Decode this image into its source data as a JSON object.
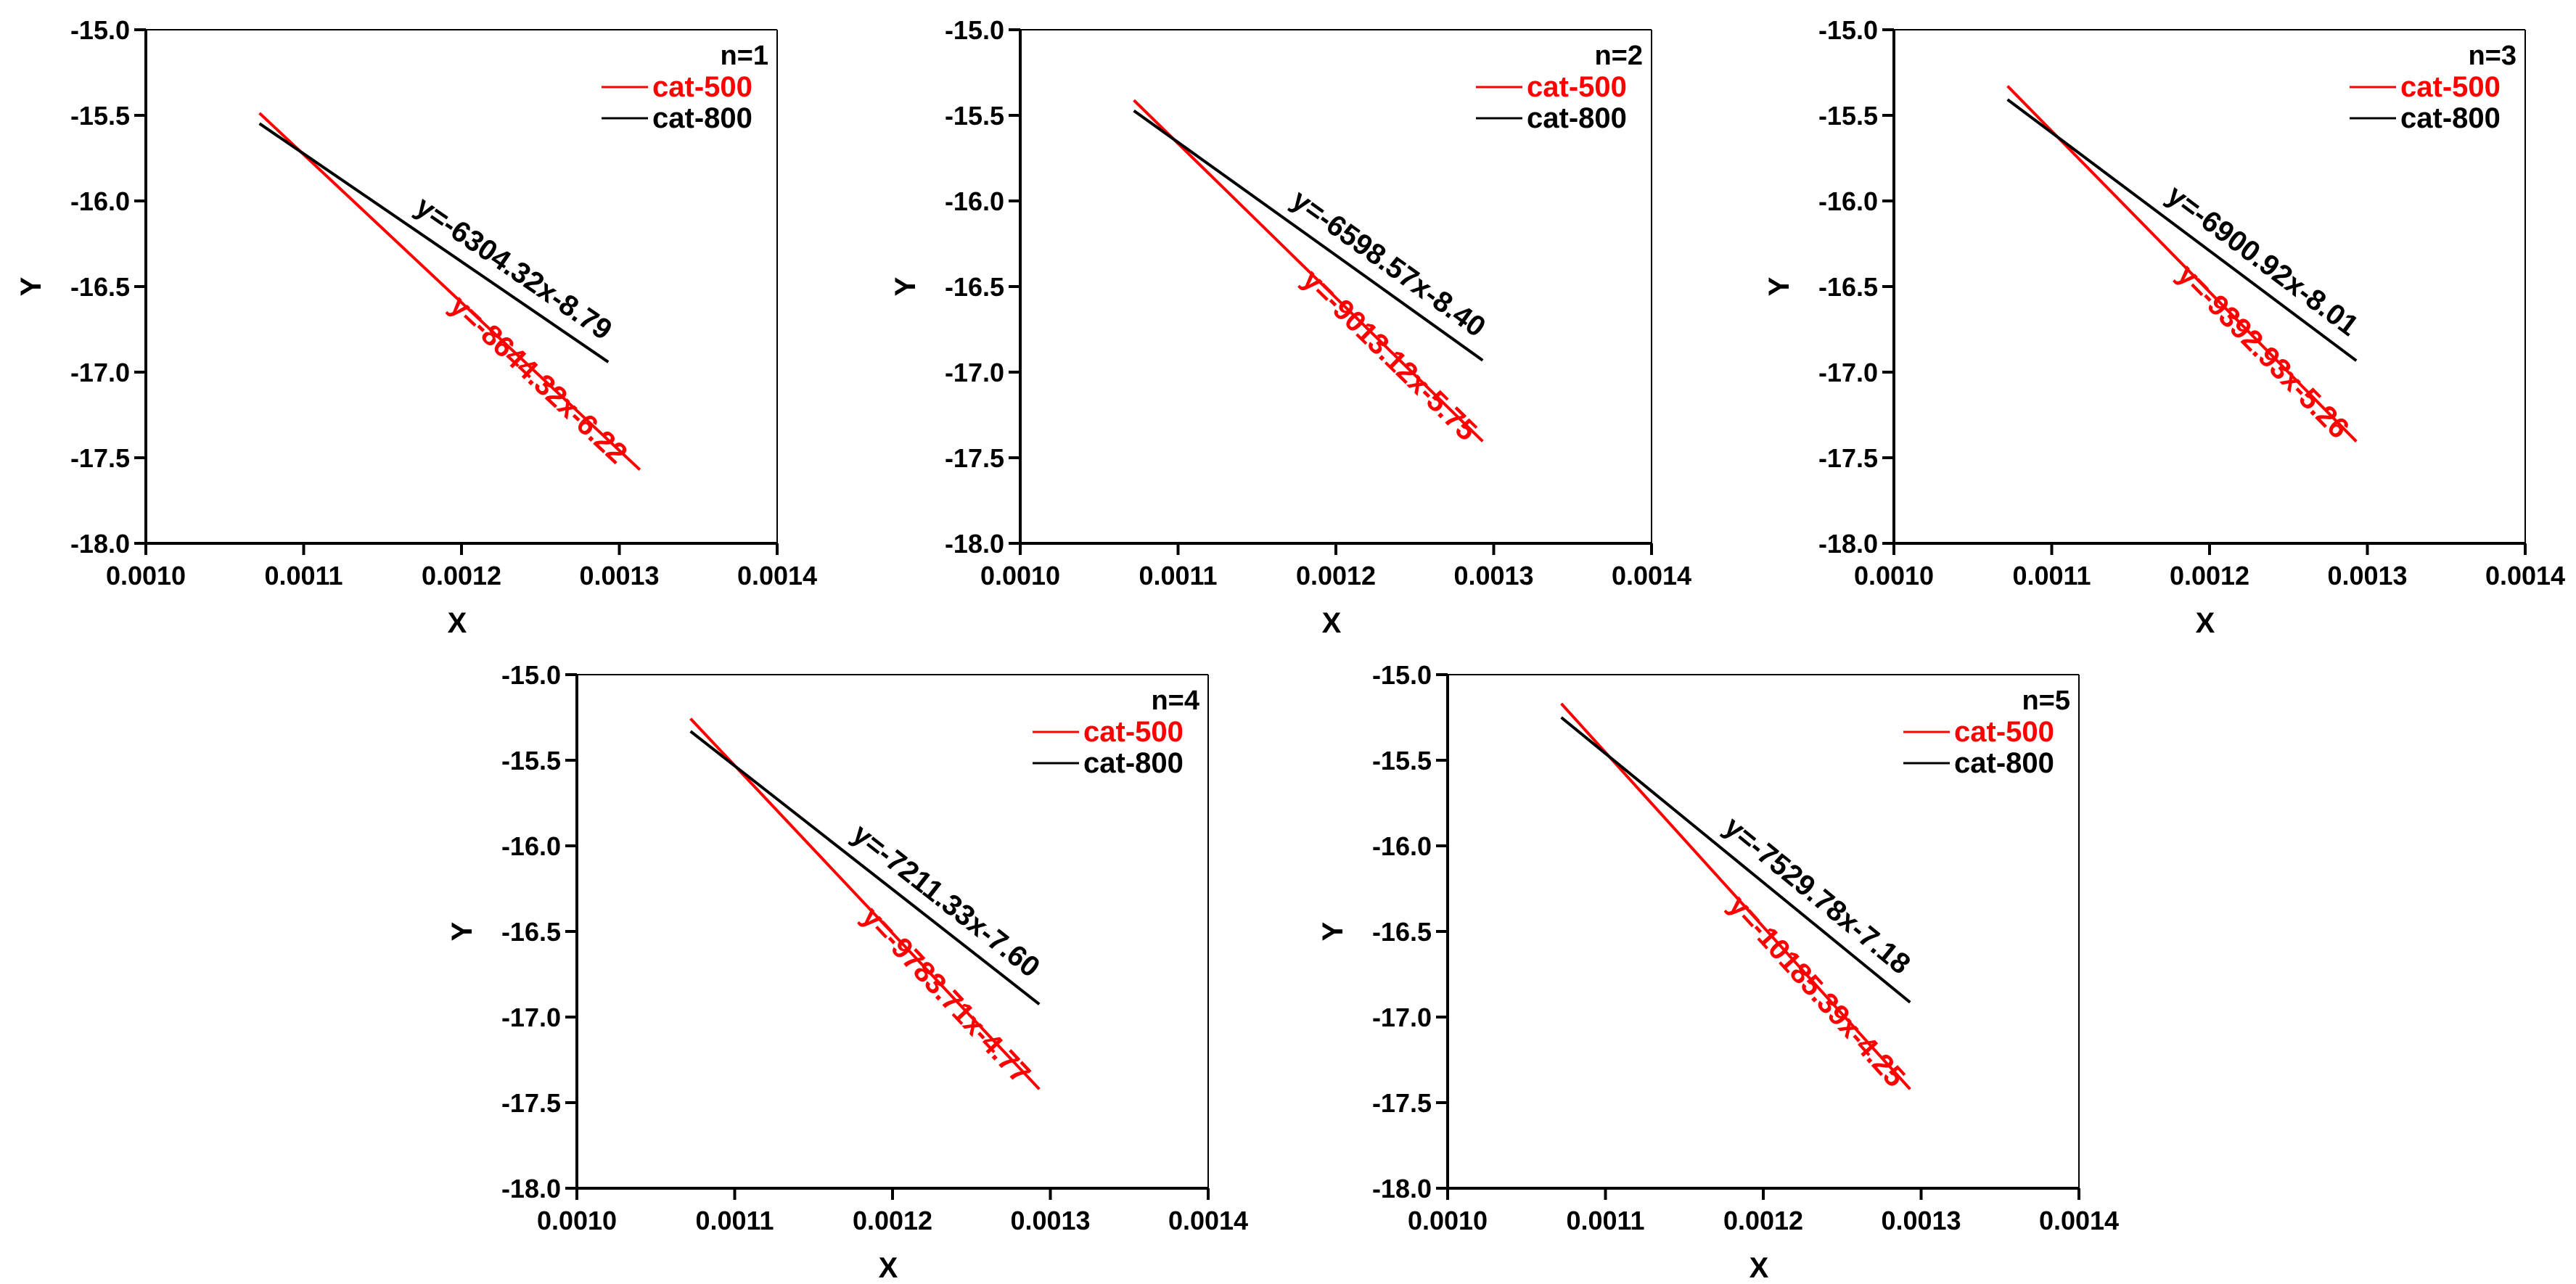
{
  "chart_data": [
    {
      "type": "line",
      "panel_label": "n=1",
      "xlabel": "X",
      "ylabel": "Y",
      "xlim": [
        0.001,
        0.0014
      ],
      "ylim": [
        -18.0,
        -15.0
      ],
      "x_ticks": [
        "0.0010",
        "0.0011",
        "0.0012",
        "0.0013",
        "0.0014"
      ],
      "y_ticks": [
        "-15.0",
        "-15.5",
        "-16.0",
        "-16.5",
        "-17.0",
        "-17.5",
        "-18.0"
      ],
      "legend": {
        "position": "top-right",
        "entries": [
          "cat-500",
          "cat-800"
        ]
      },
      "series": [
        {
          "name": "cat-500",
          "color": "#ff0000",
          "x": [
            0.001072,
            0.001313
          ],
          "y": [
            -15.487,
            -17.57
          ],
          "equation": "y=-8644.32x-6.22"
        },
        {
          "name": "cat-800",
          "color": "#000000",
          "x": [
            0.001072,
            0.001293
          ],
          "y": [
            -15.548,
            -16.941
          ],
          "equation": "y=-6304.32x-8.79"
        }
      ]
    },
    {
      "type": "line",
      "panel_label": "n=2",
      "xlabel": "X",
      "ylabel": "Y",
      "xlim": [
        0.001,
        0.0014
      ],
      "ylim": [
        -18.0,
        -15.0
      ],
      "x_ticks": [
        "0.0010",
        "0.0011",
        "0.0012",
        "0.0013",
        "0.0014"
      ],
      "y_ticks": [
        "-15.0",
        "-15.5",
        "-16.0",
        "-16.5",
        "-17.0",
        "-17.5",
        "-18.0"
      ],
      "legend": {
        "position": "top-right",
        "entries": [
          "cat-500",
          "cat-800"
        ]
      },
      "series": [
        {
          "name": "cat-500",
          "color": "#ff0000",
          "x": [
            0.001072,
            0.001293
          ],
          "y": [
            -15.412,
            -17.404
          ],
          "equation": "y=-9013.12x-5.75"
        },
        {
          "name": "cat-800",
          "color": "#000000",
          "x": [
            0.001072,
            0.001293
          ],
          "y": [
            -15.473,
            -16.931
          ],
          "equation": "y=-6598.57x-8.40"
        }
      ]
    },
    {
      "type": "line",
      "panel_label": "n=3",
      "xlabel": "X",
      "ylabel": "Y",
      "xlim": [
        0.001,
        0.0014
      ],
      "ylim": [
        -18.0,
        -15.0
      ],
      "x_ticks": [
        "0.0010",
        "0.0011",
        "0.0012",
        "0.0013",
        "0.0014"
      ],
      "y_ticks": [
        "-15.0",
        "-15.5",
        "-16.0",
        "-16.5",
        "-17.0",
        "-17.5",
        "-18.0"
      ],
      "legend": {
        "position": "top-right",
        "entries": [
          "cat-500",
          "cat-800"
        ]
      },
      "series": [
        {
          "name": "cat-500",
          "color": "#ff0000",
          "x": [
            0.001072,
            0.001293
          ],
          "y": [
            -15.329,
            -17.405
          ],
          "equation": "y=-9392.93x-5.26"
        },
        {
          "name": "cat-800",
          "color": "#000000",
          "x": [
            0.001072,
            0.001293
          ],
          "y": [
            -15.408,
            -16.933
          ],
          "equation": "y=-6900.92x-8.01"
        }
      ]
    },
    {
      "type": "line",
      "panel_label": "n=4",
      "xlabel": "X",
      "ylabel": "Y",
      "xlim": [
        0.001,
        0.0014
      ],
      "ylim": [
        -18.0,
        -15.0
      ],
      "x_ticks": [
        "0.0010",
        "0.0011",
        "0.0012",
        "0.0013",
        "0.0014"
      ],
      "y_ticks": [
        "-15.0",
        "-15.5",
        "-16.0",
        "-16.5",
        "-17.0",
        "-17.5",
        "-18.0"
      ],
      "legend": {
        "position": "top-right",
        "entries": [
          "cat-500",
          "cat-800"
        ]
      },
      "series": [
        {
          "name": "cat-500",
          "color": "#ff0000",
          "x": [
            0.001072,
            0.001293
          ],
          "y": [
            -15.257,
            -17.421
          ],
          "equation": "y=-9783.71x-4.77"
        },
        {
          "name": "cat-800",
          "color": "#000000",
          "x": [
            0.001072,
            0.001293
          ],
          "y": [
            -15.331,
            -16.925
          ],
          "equation": "y=-7211.33x-7.60"
        }
      ]
    },
    {
      "type": "line",
      "panel_label": "n=5",
      "xlabel": "X",
      "ylabel": "Y",
      "xlim": [
        0.001,
        0.0014
      ],
      "ylim": [
        -18.0,
        -15.0
      ],
      "x_ticks": [
        "0.0010",
        "0.0011",
        "0.0012",
        "0.0013",
        "0.0014"
      ],
      "y_ticks": [
        "-15.0",
        "-15.5",
        "-16.0",
        "-16.5",
        "-17.0",
        "-17.5",
        "-18.0"
      ],
      "legend": {
        "position": "top-right",
        "entries": [
          "cat-500",
          "cat-800"
        ]
      },
      "series": [
        {
          "name": "cat-500",
          "color": "#ff0000",
          "x": [
            0.001072,
            0.001293
          ],
          "y": [
            -15.169,
            -17.421
          ],
          "equation": "y=-10185.39x-4.25"
        },
        {
          "name": "cat-800",
          "color": "#000000",
          "x": [
            0.001072,
            0.001293
          ],
          "y": [
            -15.25,
            -16.914
          ],
          "equation": "y=-7529.78x-7.18"
        }
      ]
    }
  ]
}
